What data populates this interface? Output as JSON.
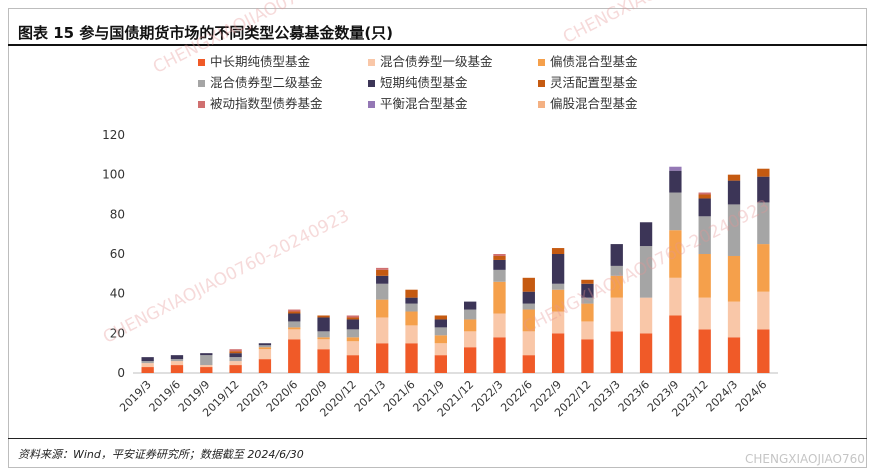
{
  "figure": {
    "title": "图表 15   参与国债期货市场的不同类型公募基金数量(只)",
    "source": "资料来源：Wind，平安证券研究所；数据截至 2024/6/30",
    "watermark": "CHENGXIAOJIAO0760-20240923",
    "watermark_short": "CHENGXIAOJIAO760"
  },
  "chart_data": {
    "type": "bar",
    "stacked": true,
    "title": "",
    "xlabel": "",
    "ylabel": "",
    "ylim": [
      0,
      120
    ],
    "yticks": [
      0,
      20,
      40,
      60,
      80,
      100,
      120
    ],
    "grid": false,
    "legend_position": "top",
    "categories": [
      "2019/3",
      "2019/6",
      "2019/9",
      "2019/12",
      "2020/3",
      "2020/6",
      "2020/9",
      "2020/12",
      "2021/3",
      "2021/6",
      "2021/9",
      "2021/12",
      "2022/3",
      "2022/6",
      "2022/9",
      "2022/12",
      "2023/3",
      "2023/6",
      "2023/9",
      "2023/12",
      "2024/3",
      "2024/6"
    ],
    "series": [
      {
        "name": "中长期纯债型基金",
        "color": "#f05a28",
        "values": [
          3,
          4,
          3,
          4,
          7,
          17,
          12,
          9,
          15,
          15,
          9,
          13,
          18,
          9,
          20,
          17,
          21,
          20,
          29,
          22,
          18,
          22
        ]
      },
      {
        "name": "混合债券型一级基金",
        "color": "#f9c7a8",
        "values": [
          2,
          2,
          1,
          2,
          5,
          5,
          5,
          7,
          13,
          9,
          6,
          8,
          12,
          12,
          11,
          9,
          17,
          18,
          19,
          16,
          18,
          19
        ]
      },
      {
        "name": "偏债混合型基金",
        "color": "#f5a04b",
        "values": [
          0,
          0,
          0,
          0,
          1,
          1,
          1,
          2,
          9,
          7,
          4,
          6,
          16,
          11,
          11,
          9,
          11,
          0,
          24,
          22,
          23,
          24
        ]
      },
      {
        "name": "混合债券型二级基金",
        "color": "#a5a5a5",
        "values": [
          1,
          1,
          5,
          2,
          1,
          3,
          3,
          4,
          8,
          4,
          4,
          5,
          6,
          3,
          3,
          3,
          5,
          26,
          19,
          19,
          26,
          21
        ]
      },
      {
        "name": "短期纯债型基金",
        "color": "#3c3557",
        "values": [
          2,
          2,
          1,
          2,
          1,
          4,
          7,
          5,
          4,
          3,
          4,
          4,
          5,
          6,
          15,
          7,
          11,
          12,
          11,
          9,
          12,
          13
        ]
      },
      {
        "name": "灵活配置型基金",
        "color": "#c55a11",
        "values": [
          0,
          0,
          0,
          1,
          0,
          1,
          1,
          1,
          3,
          4,
          2,
          0,
          2,
          7,
          3,
          2,
          0,
          0,
          0,
          2,
          3,
          4
        ]
      },
      {
        "name": "被动指数型债券基金",
        "color": "#d07070",
        "values": [
          0,
          0,
          0,
          1,
          0,
          1,
          0,
          1,
          1,
          0,
          0,
          0,
          1,
          0,
          0,
          0,
          0,
          0,
          0,
          1,
          0,
          0
        ]
      },
      {
        "name": "平衡混合型基金",
        "color": "#9478b5",
        "values": [
          0,
          0,
          0,
          0,
          0,
          0,
          0,
          0,
          0,
          0,
          0,
          0,
          0,
          0,
          0,
          0,
          0,
          0,
          2,
          0,
          0,
          0
        ]
      },
      {
        "name": "偏股混合型基金",
        "color": "#f4b183",
        "values": [
          0,
          0,
          0,
          0,
          0,
          0,
          0,
          0,
          0,
          0,
          0,
          0,
          0,
          0,
          0,
          0,
          0,
          0,
          0,
          0,
          0,
          0
        ]
      }
    ]
  }
}
